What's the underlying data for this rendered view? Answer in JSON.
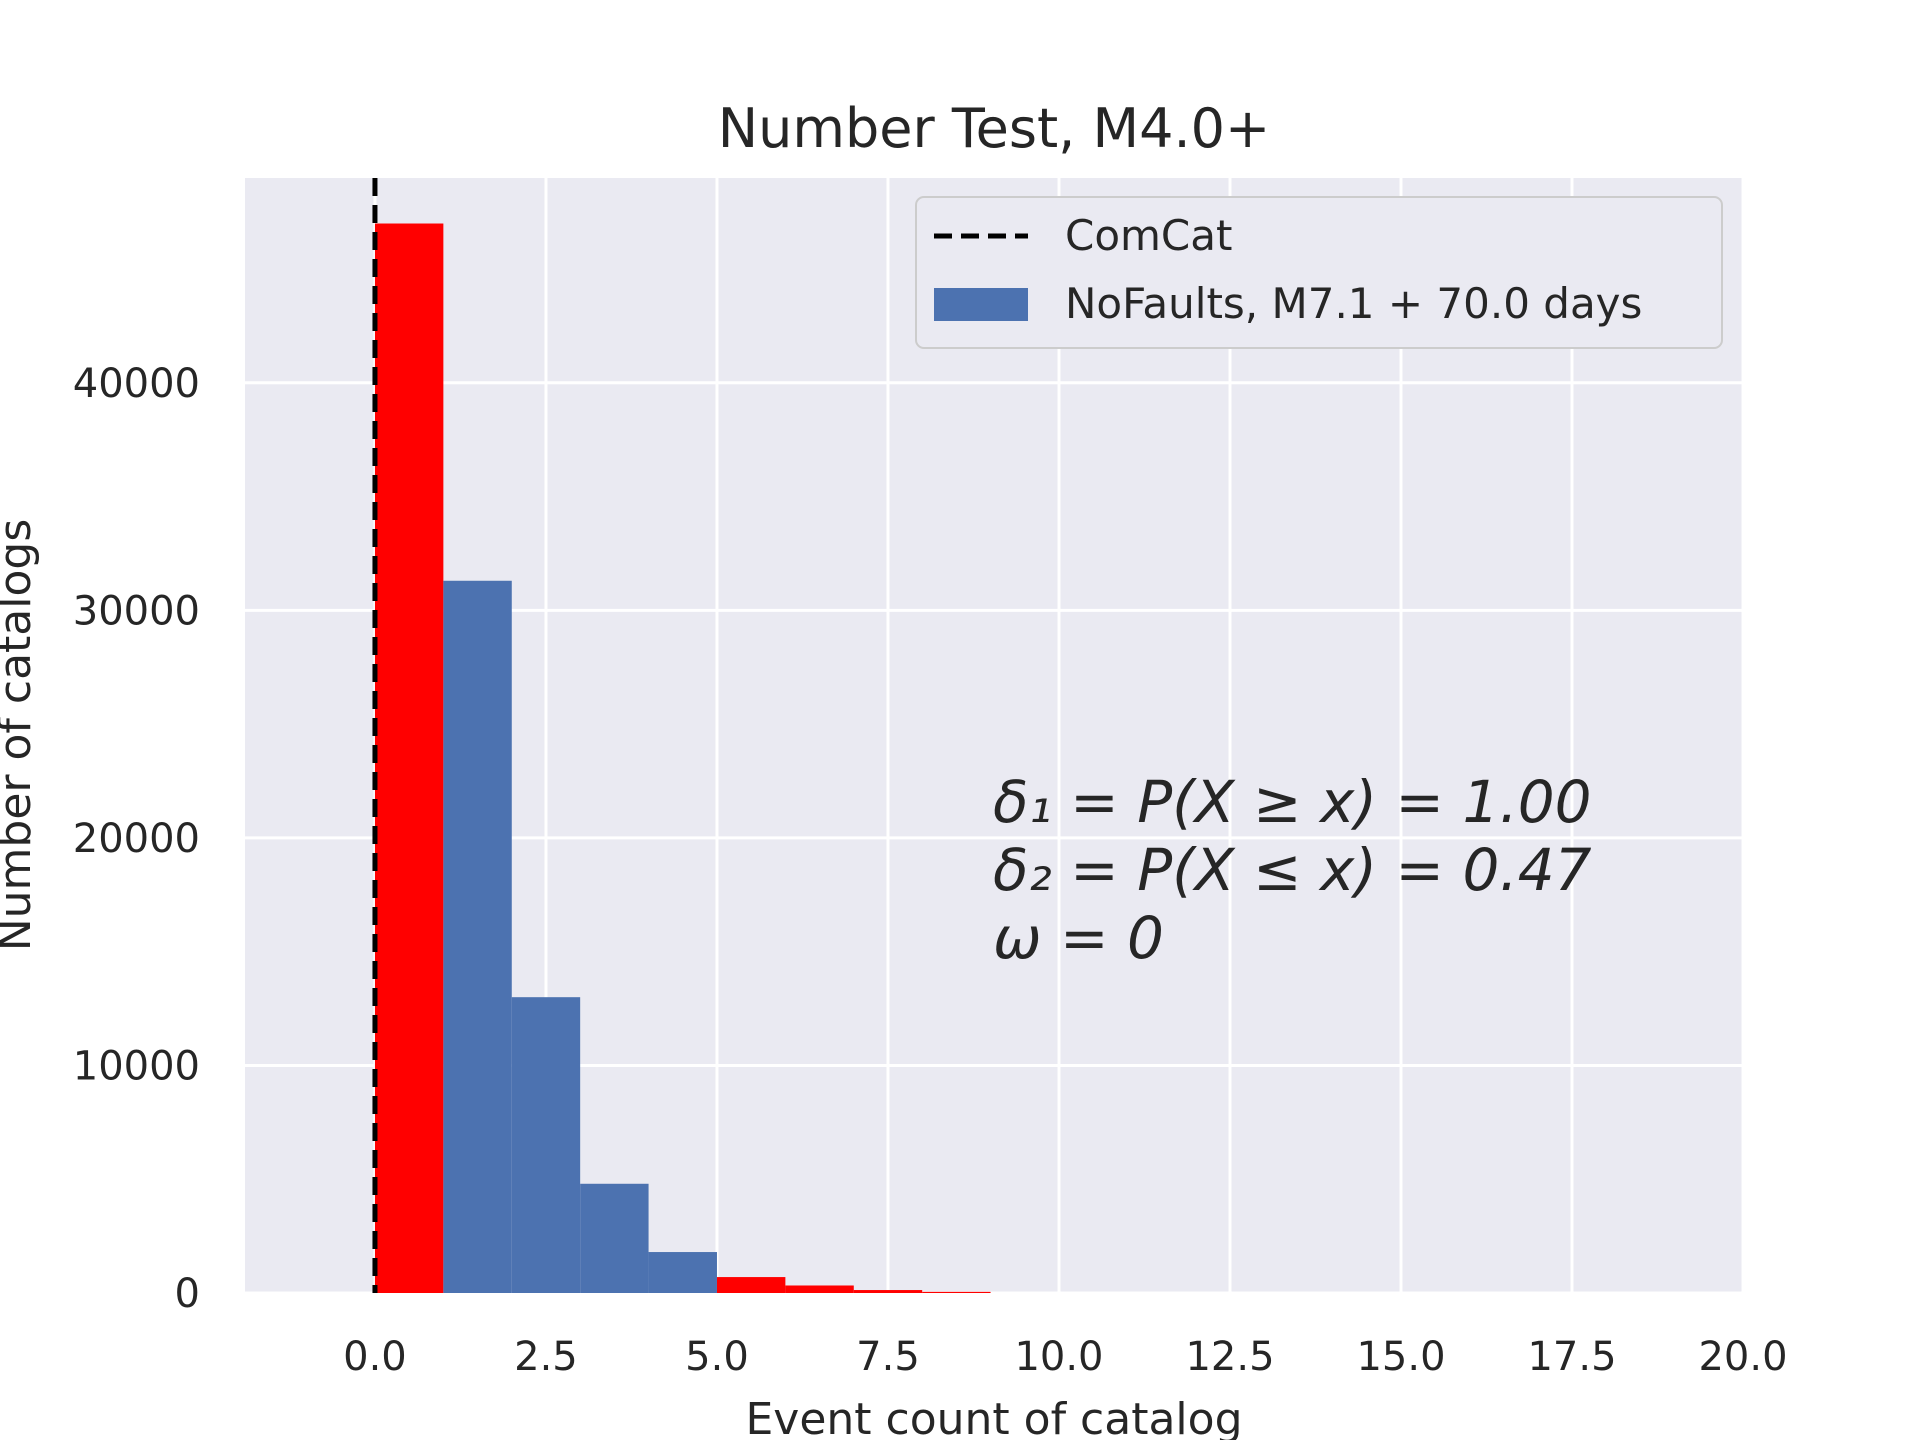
{
  "chart_data": {
    "type": "bar",
    "title": "Number Test, M4.0+",
    "xlabel": "Event count of catalog",
    "ylabel": "Number of catalogs",
    "xlim": [
      -1.9,
      20.0
    ],
    "ylim": [
      0,
      49000
    ],
    "x_ticks": [
      "0.0",
      "2.5",
      "5.0",
      "7.5",
      "10.0",
      "12.5",
      "15.0",
      "17.5",
      "20.0"
    ],
    "x_tick_values": [
      0,
      2.5,
      5,
      7.5,
      10,
      12.5,
      15,
      17.5,
      20
    ],
    "y_ticks": [
      "0",
      "10000",
      "20000",
      "30000",
      "40000"
    ],
    "y_tick_values": [
      0,
      10000,
      20000,
      30000,
      40000
    ],
    "grid": true,
    "legend_position": "top-right",
    "series": [
      {
        "name": "NoFaults, M7.1 + 70.0 days",
        "color": "#4c72b0",
        "highlight_color": "#ff0000",
        "bins": [
          {
            "x0": 0,
            "x1": 1,
            "value": 47000,
            "highlight": true
          },
          {
            "x0": 1,
            "x1": 2,
            "value": 31300,
            "highlight": false
          },
          {
            "x0": 2,
            "x1": 3,
            "value": 13000,
            "highlight": false
          },
          {
            "x0": 3,
            "x1": 4,
            "value": 4800,
            "highlight": false
          },
          {
            "x0": 4,
            "x1": 5,
            "value": 1800,
            "highlight": false
          },
          {
            "x0": 5,
            "x1": 6,
            "value": 700,
            "highlight": true
          },
          {
            "x0": 6,
            "x1": 7,
            "value": 330,
            "highlight": true
          },
          {
            "x0": 7,
            "x1": 8,
            "value": 130,
            "highlight": true
          },
          {
            "x0": 8,
            "x1": 9,
            "value": 50,
            "highlight": true
          }
        ]
      }
    ],
    "reference_line": {
      "name": "ComCat",
      "x": 0,
      "style": "dashed",
      "color": "#000000"
    },
    "annotations": [
      "δ₁ = P(X ≥ x) = 1.00",
      "δ₂ = P(X ≤ x) = 0.47",
      "ω = 0"
    ]
  }
}
